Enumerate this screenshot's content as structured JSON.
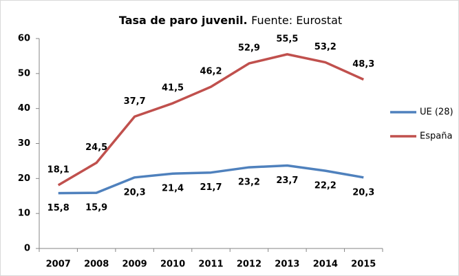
{
  "chart_data": {
    "type": "line",
    "title": "Tasa de paro juvenil.",
    "subtitle": "Fuente: Eurostat",
    "categories": [
      "2007",
      "2008",
      "2009",
      "2010",
      "2011",
      "2012",
      "2013",
      "2014",
      "2015"
    ],
    "series": [
      {
        "name": "UE (28)",
        "color": "#4f81bd",
        "values": [
          15.8,
          15.9,
          20.3,
          21.4,
          21.7,
          23.2,
          23.7,
          22.2,
          20.3
        ],
        "value_labels": [
          "15,8",
          "15,9",
          "20,3",
          "21,4",
          "21,7",
          "23,2",
          "23,7",
          "22,2",
          "20,3"
        ]
      },
      {
        "name": "España",
        "color": "#c0504d",
        "values": [
          18.1,
          24.5,
          37.7,
          41.5,
          46.2,
          52.9,
          55.5,
          53.2,
          48.3
        ],
        "value_labels": [
          "18,1",
          "24,5",
          "37,7",
          "41,5",
          "46,2",
          "52,9",
          "55,5",
          "53,2",
          "48,3"
        ]
      }
    ],
    "ylim": [
      0,
      60
    ],
    "yticks": [
      0,
      10,
      20,
      30,
      40,
      50,
      60
    ],
    "grid": false,
    "legend": "right"
  }
}
